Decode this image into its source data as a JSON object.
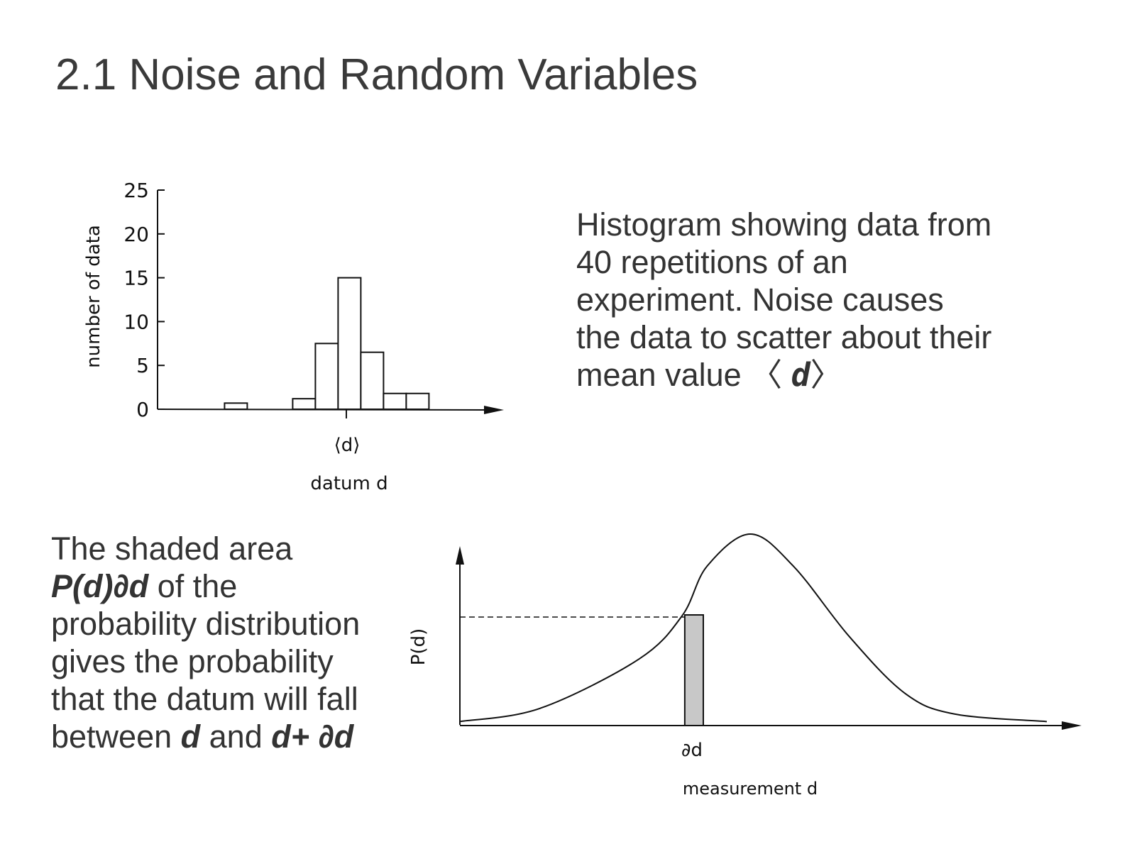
{
  "title": "2.1 Noise and Random Variables",
  "text1": {
    "lines": [
      "Histogram showing data from",
      "40 repetitions of an",
      "experiment. Noise causes",
      "the data to scatter about their",
      "mean value 〈"
    ],
    "symbol": "d",
    "close": "〉"
  },
  "text2": {
    "l1": "The shaded area",
    "l2a": "P(d)∂d",
    "l2b": " of the",
    "l3": "probability distribution",
    "l4": "gives the probability",
    "l5": "that the datum will fall",
    "l6a": "between ",
    "l6b": "d",
    "l6c": " and ",
    "l6d": "d+ ∂d"
  },
  "chart_data": [
    {
      "type": "bar",
      "xlabel": "datum d",
      "ylabel": "number of data",
      "ylim": [
        0,
        25
      ],
      "yticks": [
        "0",
        "5",
        "10",
        "15",
        "20",
        "25"
      ],
      "x_tick_label": "⟨d⟩",
      "bin_index": [
        3,
        6,
        7,
        8,
        9,
        10,
        11
      ],
      "values": [
        0.7,
        1.2,
        7.5,
        15,
        6.5,
        1.8,
        1.8
      ]
    },
    {
      "type": "line",
      "xlabel": "measurement d",
      "ylabel": "P(d)",
      "x_tick_label": "∂d",
      "x": [
        0,
        13,
        29,
        36,
        40,
        47,
        54,
        63,
        72,
        80,
        95
      ],
      "y": [
        1,
        8,
        34,
        57,
        83,
        100,
        83,
        46,
        16,
        5,
        1
      ],
      "shaded_interval": [
        36.4,
        39.4
      ]
    }
  ]
}
